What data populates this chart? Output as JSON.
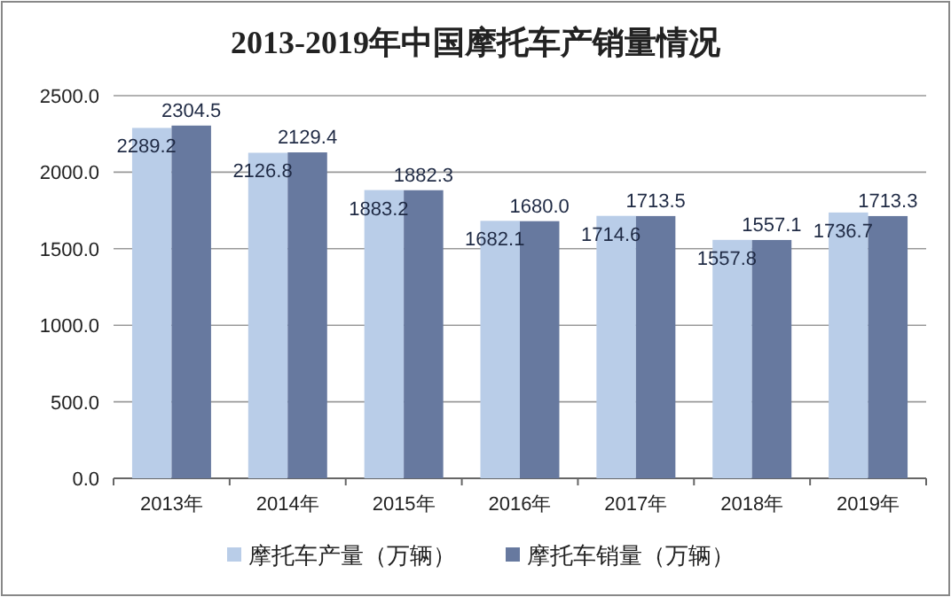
{
  "chart_data": {
    "type": "bar",
    "title": "2013-2019年中国摩托车产销量情况",
    "categories": [
      "2013年",
      "2014年",
      "2015年",
      "2016年",
      "2017年",
      "2018年",
      "2019年"
    ],
    "series": [
      {
        "name": "摩托车产量（万辆）",
        "color": "#b9cde8",
        "values": [
          2289.2,
          2126.8,
          1883.2,
          1682.1,
          1714.6,
          1557.8,
          1736.7
        ],
        "value_labels": [
          "2289.2",
          "2126.8",
          "1883.2",
          "1682.1",
          "1714.6",
          "1557.8",
          "1736.7"
        ]
      },
      {
        "name": "摩托车销量（万辆）",
        "color": "#67799f",
        "values": [
          2304.5,
          2129.4,
          1882.3,
          1680.0,
          1713.5,
          1557.1,
          1713.3
        ],
        "value_labels": [
          "2304.5",
          "2129.4",
          "1882.3",
          "1680.0",
          "1713.5",
          "1557.1",
          "1713.3"
        ]
      }
    ],
    "ylim": [
      0,
      2500
    ],
    "yticks": [
      {
        "value": 0,
        "label": "0.0"
      },
      {
        "value": 500,
        "label": "500.0"
      },
      {
        "value": 1000,
        "label": "1000.0"
      },
      {
        "value": 1500,
        "label": "1500.0"
      },
      {
        "value": 2000,
        "label": "2000.0"
      },
      {
        "value": 2500,
        "label": "2500.0"
      }
    ],
    "grid": "y",
    "legend": "bottom"
  }
}
